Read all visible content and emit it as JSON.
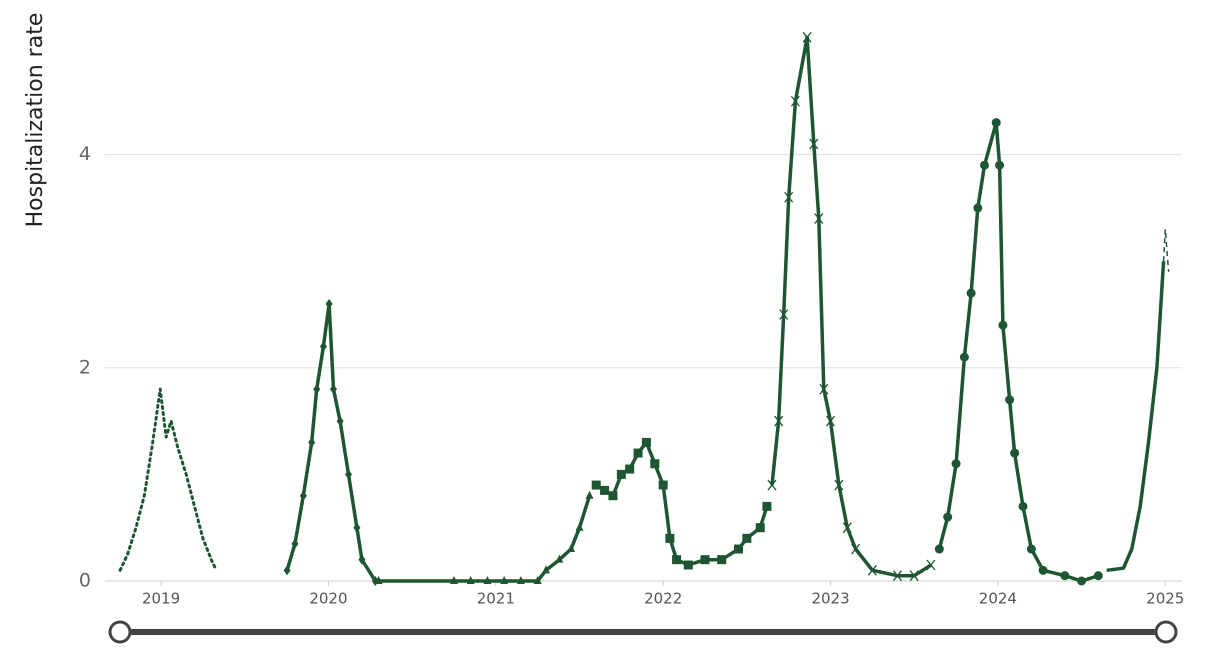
{
  "chart_data": {
    "type": "line",
    "y_label": "Hospitalization rate",
    "xlim": [
      2018.665,
      2025.1
    ],
    "ylim": [
      0,
      5.45
    ],
    "xticks": [
      2019,
      2020,
      2021,
      2022,
      2023,
      2024,
      2025
    ],
    "yticks": [
      0,
      2,
      4
    ],
    "grid": true,
    "series": [
      {
        "color": "#1e5631",
        "marker": "none",
        "dash": "dotted",
        "x": [
          2018.755,
          2018.8,
          2018.85,
          2018.9,
          2018.95,
          2018.995,
          2019.03,
          2019.06,
          2019.1,
          2019.15,
          2019.2,
          2019.25,
          2019.3,
          2019.33
        ],
        "values": [
          0.1,
          0.25,
          0.5,
          0.8,
          1.3,
          1.8,
          1.35,
          1.5,
          1.25,
          1.0,
          0.7,
          0.4,
          0.2,
          0.1
        ]
      },
      {
        "color": "#1e5631",
        "marker": "diamond",
        "dash": "solid",
        "x": [
          2019.753,
          2019.8,
          2019.85,
          2019.9,
          2019.93,
          2019.97,
          2020.004,
          2020.03,
          2020.07,
          2020.12,
          2020.17,
          2020.2,
          2020.28
        ],
        "values": [
          0.1,
          0.35,
          0.8,
          1.3,
          1.8,
          2.2,
          2.6,
          1.8,
          1.5,
          1.0,
          0.5,
          0.2,
          0.0
        ]
      },
      {
        "color": "#1e5631",
        "marker": "triangle",
        "dash": "solid",
        "x": [
          2020.3,
          2020.75,
          2020.85,
          2020.95,
          2021.05,
          2021.15,
          2021.25,
          2021.3,
          2021.38,
          2021.45,
          2021.5,
          2021.56
        ],
        "values": [
          0.0,
          0.0,
          0.0,
          0.0,
          0.0,
          0.0,
          0.0,
          0.1,
          0.2,
          0.3,
          0.5,
          0.8
        ]
      },
      {
        "color": "#1e5631",
        "marker": "square",
        "dash": "solid",
        "x": [
          2021.6,
          2021.65,
          2021.7,
          2021.75,
          2021.8,
          2021.85,
          2021.9,
          2021.95,
          2022.0,
          2022.04,
          2022.08,
          2022.15,
          2022.25,
          2022.35,
          2022.45,
          2022.5,
          2022.58,
          2022.62
        ],
        "values": [
          0.9,
          0.85,
          0.8,
          1.0,
          1.05,
          1.2,
          1.3,
          1.1,
          0.9,
          0.4,
          0.2,
          0.15,
          0.2,
          0.2,
          0.3,
          0.4,
          0.5,
          0.7
        ]
      },
      {
        "color": "#1e5631",
        "marker": "cross",
        "dash": "solid",
        "x": [
          2022.65,
          2022.69,
          2022.72,
          2022.75,
          2022.79,
          2022.86,
          2022.9,
          2022.93,
          2022.96,
          2023.0,
          2023.05,
          2023.1,
          2023.15,
          2023.25,
          2023.4,
          2023.5,
          2023.6
        ],
        "values": [
          0.9,
          1.5,
          2.5,
          3.6,
          4.5,
          5.1,
          4.1,
          3.4,
          1.8,
          1.5,
          0.9,
          0.5,
          0.3,
          0.1,
          0.05,
          0.05,
          0.15
        ]
      },
      {
        "color": "#1e5631",
        "marker": "circle",
        "dash": "solid",
        "x": [
          2023.65,
          2023.7,
          2023.75,
          2023.8,
          2023.84,
          2023.88,
          2023.92,
          2023.99,
          2024.01,
          2024.03,
          2024.07,
          2024.1,
          2024.15,
          2024.2,
          2024.27,
          2024.4,
          2024.5,
          2024.6
        ],
        "values": [
          0.3,
          0.6,
          1.1,
          2.1,
          2.7,
          3.5,
          3.9,
          4.3,
          3.9,
          2.4,
          1.7,
          1.2,
          0.7,
          0.3,
          0.1,
          0.05,
          0.0,
          0.05
        ]
      },
      {
        "color": "#1e5631",
        "marker": "none",
        "dash": "solid",
        "x": [
          2024.65,
          2024.75,
          2024.8,
          2024.85,
          2024.9,
          2024.95,
          2024.99
        ],
        "values": [
          0.1,
          0.12,
          0.3,
          0.7,
          1.3,
          2.0,
          3.0
        ]
      },
      {
        "color": "#1e5631",
        "marker": "none",
        "dash": "dashed",
        "x": [
          2024.99,
          2025.0,
          2025.02
        ],
        "values": [
          3.0,
          3.3,
          2.9
        ]
      }
    ]
  }
}
